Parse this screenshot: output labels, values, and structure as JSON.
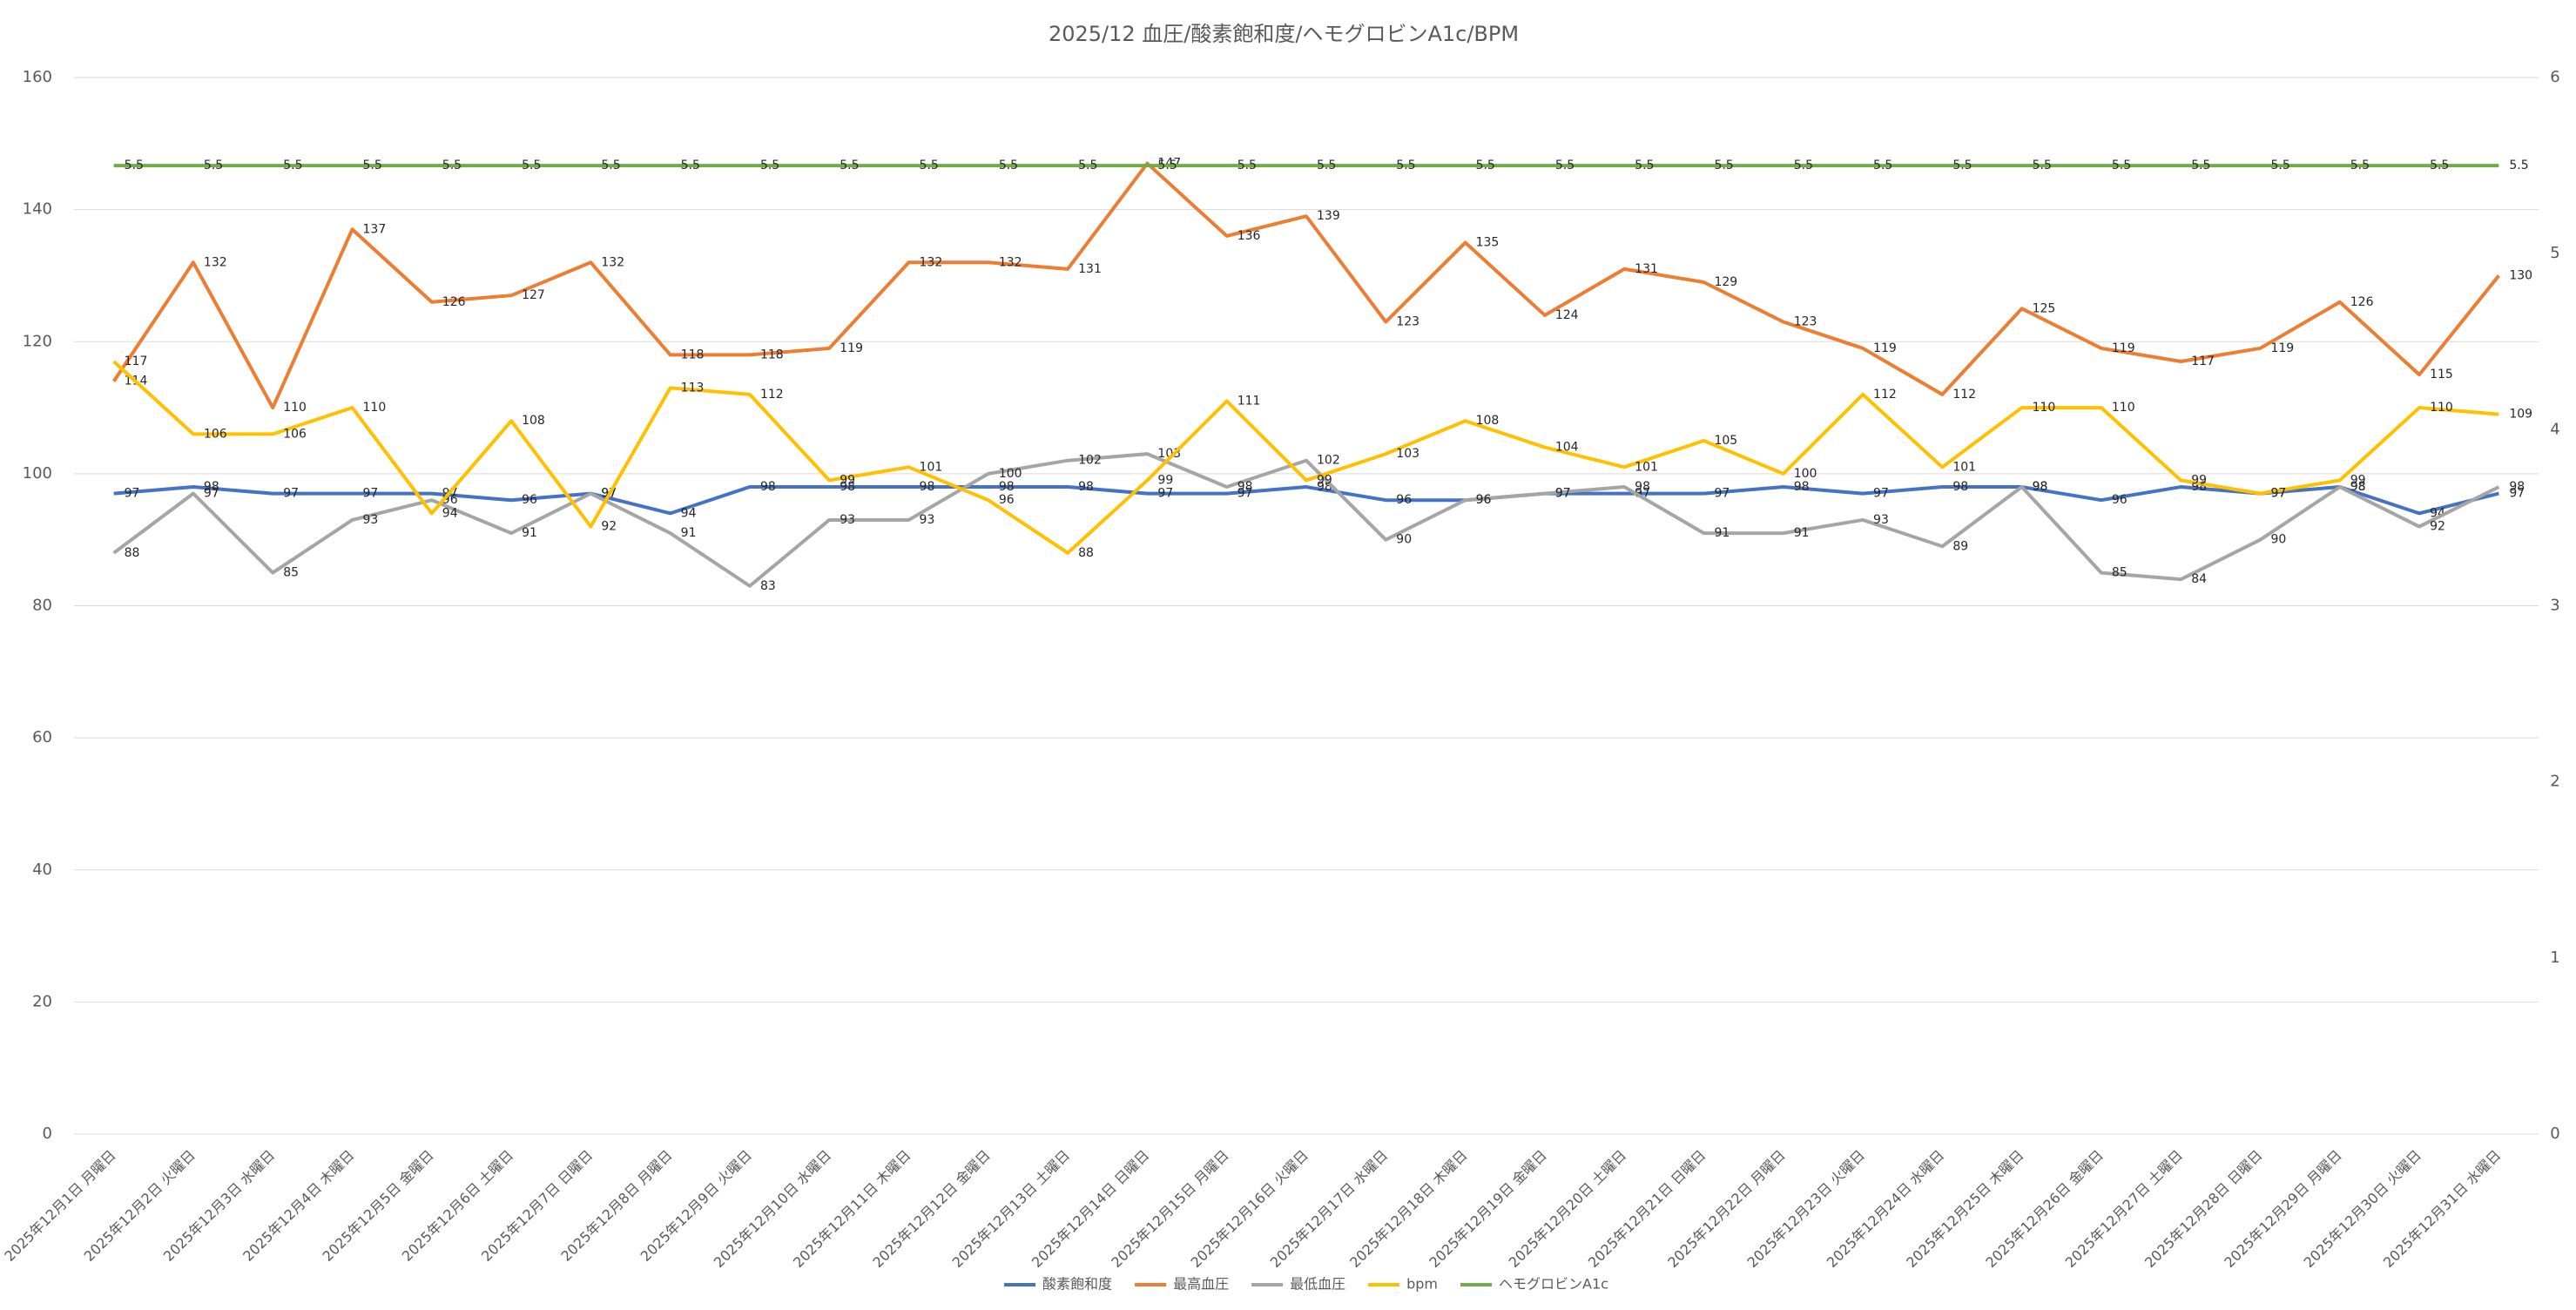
{
  "chart_data": {
    "type": "line",
    "title": "2025/12 血圧/酸素飽和度/ヘモグロビンA1c/BPM",
    "categories": [
      "2025年12月1日 月曜日",
      "2025年12月2日 火曜日",
      "2025年12月3日 水曜日",
      "2025年12月4日 木曜日",
      "2025年12月5日 金曜日",
      "2025年12月6日 土曜日",
      "2025年12月7日 日曜日",
      "2025年12月8日 月曜日",
      "2025年12月9日 火曜日",
      "2025年12月10日 水曜日",
      "2025年12月11日 木曜日",
      "2025年12月12日 金曜日",
      "2025年12月13日 土曜日",
      "2025年12月14日 日曜日",
      "2025年12月15日 月曜日",
      "2025年12月16日 火曜日",
      "2025年12月17日 水曜日",
      "2025年12月18日 木曜日",
      "2025年12月19日 金曜日",
      "2025年12月20日 土曜日",
      "2025年12月21日 日曜日",
      "2025年12月22日 月曜日",
      "2025年12月23日 火曜日",
      "2025年12月24日 水曜日",
      "2025年12月25日 木曜日",
      "2025年12月26日 金曜日",
      "2025年12月27日 土曜日",
      "2025年12月28日 日曜日",
      "2025年12月29日 月曜日",
      "2025年12月30日 火曜日",
      "2025年12月31日 水曜日"
    ],
    "series": [
      {
        "name": "酸素飽和度",
        "color": "#4472c4",
        "values": [
          97,
          98,
          97,
          97,
          97,
          96,
          97,
          94,
          98,
          98,
          98,
          98,
          98,
          97,
          97,
          98,
          96,
          96,
          97,
          97,
          97,
          98,
          97,
          98,
          98,
          96,
          98,
          97,
          98,
          94,
          97
        ]
      },
      {
        "name": "最高血圧",
        "color": "#ed7d31",
        "values": [
          114,
          132,
          110,
          137,
          126,
          127,
          132,
          118,
          118,
          119,
          132,
          132,
          131,
          147,
          136,
          139,
          123,
          135,
          124,
          131,
          129,
          123,
          119,
          112,
          125,
          119,
          117,
          119,
          126,
          115,
          130
        ]
      },
      {
        "name": "最低血圧",
        "color": "#a5a5a5",
        "values": [
          88,
          97,
          85,
          93,
          96,
          91,
          97,
          91,
          83,
          93,
          93,
          100,
          102,
          103,
          98,
          102,
          90,
          96,
          97,
          98,
          91,
          91,
          93,
          89,
          98,
          85,
          84,
          90,
          98,
          92,
          98
        ]
      },
      {
        "name": "bpm",
        "color": "#ffc000",
        "values": [
          117,
          106,
          106,
          110,
          94,
          108,
          92,
          113,
          112,
          99,
          101,
          96,
          88,
          99,
          111,
          99,
          103,
          108,
          104,
          101,
          105,
          100,
          112,
          101,
          110,
          110,
          99,
          97,
          99,
          110,
          109
        ]
      },
      {
        "name": "ヘモグロビンA1c",
        "color": "#70ad47",
        "axis": "y2",
        "values": [
          5.5,
          5.5,
          5.5,
          5.5,
          5.5,
          5.5,
          5.5,
          5.5,
          5.5,
          5.5,
          5.5,
          5.5,
          5.5,
          5.5,
          5.5,
          5.5,
          5.5,
          5.5,
          5.5,
          5.5,
          5.5,
          5.5,
          5.5,
          5.5,
          5.5,
          5.5,
          5.5,
          5.5,
          5.5,
          5.5,
          5.5
        ]
      }
    ],
    "ylim": [
      0,
      160
    ],
    "yticks": [
      0,
      20,
      40,
      60,
      80,
      100,
      120,
      140,
      160
    ],
    "y2lim": [
      0,
      6
    ],
    "y2ticks": [
      0,
      1,
      2,
      3,
      4,
      5,
      6
    ],
    "grid": true,
    "legend": "bottom"
  }
}
